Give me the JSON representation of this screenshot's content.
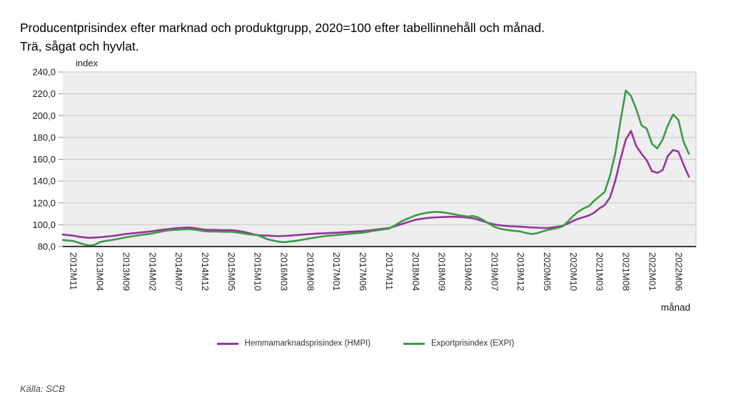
{
  "header": {
    "title_line1": "Producentprisindex efter marknad och produktgrupp, 2020=100 efter tabellinnehåll och månad.",
    "title_line2": "Trä, sågat och hyvlat."
  },
  "source": "Källa: SCB",
  "chart_data": {
    "type": "line",
    "title": "Producentprisindex efter marknad och produktgrupp, 2020=100 efter tabellinnehåll och månad. Trä, sågat och hyvlat.",
    "ylabel": "index",
    "xlabel": "månad",
    "ylim": [
      80,
      240
    ],
    "ytick_step": 20,
    "ytick_labels": [
      "240,0",
      "220,0",
      "200,0",
      "180,0",
      "160,0",
      "140,0",
      "120,0",
      "100,0",
      "80,0"
    ],
    "grid": true,
    "plot_bg": "#eeeeee",
    "grid_color": "#c6c6c6",
    "axis_color": "#3a3a3a",
    "legend_position": "bottom",
    "x": [
      "2012M09",
      "2012M10",
      "2012M11",
      "2012M12",
      "2013M01",
      "2013M02",
      "2013M03",
      "2013M04",
      "2013M05",
      "2013M06",
      "2013M07",
      "2013M08",
      "2013M09",
      "2013M10",
      "2013M11",
      "2013M12",
      "2014M01",
      "2014M02",
      "2014M03",
      "2014M04",
      "2014M05",
      "2014M06",
      "2014M07",
      "2014M08",
      "2014M09",
      "2014M10",
      "2014M11",
      "2014M12",
      "2015M01",
      "2015M02",
      "2015M03",
      "2015M04",
      "2015M05",
      "2015M06",
      "2015M07",
      "2015M08",
      "2015M09",
      "2015M10",
      "2015M11",
      "2015M12",
      "2016M01",
      "2016M02",
      "2016M03",
      "2016M04",
      "2016M05",
      "2016M06",
      "2016M07",
      "2016M08",
      "2016M09",
      "2016M10",
      "2016M11",
      "2016M12",
      "2017M01",
      "2017M02",
      "2017M03",
      "2017M04",
      "2017M05",
      "2017M06",
      "2017M07",
      "2017M08",
      "2017M09",
      "2017M10",
      "2017M11",
      "2017M12",
      "2018M01",
      "2018M02",
      "2018M03",
      "2018M04",
      "2018M05",
      "2018M06",
      "2018M07",
      "2018M08",
      "2018M09",
      "2018M10",
      "2018M11",
      "2018M12",
      "2019M01",
      "2019M02",
      "2019M03",
      "2019M04",
      "2019M05",
      "2019M06",
      "2019M07",
      "2019M08",
      "2019M09",
      "2019M10",
      "2019M11",
      "2019M12",
      "2020M01",
      "2020M02",
      "2020M03",
      "2020M04",
      "2020M05",
      "2020M06",
      "2020M07",
      "2020M08",
      "2020M09",
      "2020M10",
      "2020M11",
      "2020M12",
      "2021M01",
      "2021M02",
      "2021M03",
      "2021M04",
      "2021M05",
      "2021M06",
      "2021M07",
      "2021M08",
      "2021M09",
      "2021M10",
      "2021M11",
      "2021M12",
      "2022M01",
      "2022M02",
      "2022M03",
      "2022M04",
      "2022M05",
      "2022M06",
      "2022M07",
      "2022M08"
    ],
    "xtick_labels": [
      "2012M11",
      "2013M04",
      "2013M09",
      "2014M02",
      "2014M07",
      "2014M12",
      "2015M05",
      "2015M10",
      "2016M03",
      "2016M08",
      "2017M01",
      "2017M06",
      "2017M11",
      "2018M04",
      "2018M09",
      "2019M02",
      "2019M07",
      "2019M12",
      "2020M05",
      "2020M10",
      "2021M03",
      "2021M08",
      "2022M01",
      "2022M06"
    ],
    "series": [
      {
        "name": "Hemmamarknadsprisindex (HMPI)",
        "color": "#95349D",
        "values": [
          91.0,
          90.5,
          90.0,
          89.0,
          88.5,
          88.0,
          88.2,
          88.5,
          89.0,
          89.5,
          90.0,
          90.8,
          91.5,
          92.0,
          92.5,
          93.0,
          93.5,
          94.0,
          94.8,
          95.5,
          96.0,
          96.5,
          97.0,
          97.3,
          97.5,
          97.0,
          96.2,
          95.5,
          95.3,
          95.2,
          95.1,
          95.0,
          95.0,
          94.5,
          93.8,
          92.8,
          91.5,
          90.5,
          90.2,
          90.0,
          89.8,
          89.5,
          89.8,
          90.0,
          90.3,
          90.7,
          91.1,
          91.5,
          91.8,
          92.0,
          92.2,
          92.5,
          92.7,
          93.0,
          93.3,
          93.6,
          93.9,
          94.2,
          94.7,
          95.2,
          95.8,
          96.4,
          97.0,
          98.5,
          100.0,
          101.5,
          103.0,
          104.5,
          105.3,
          106.0,
          106.5,
          106.8,
          107.0,
          107.2,
          107.3,
          107.2,
          107.0,
          106.5,
          105.8,
          104.5,
          103.0,
          101.5,
          100.3,
          99.5,
          99.0,
          98.6,
          98.4,
          98.2,
          97.8,
          97.5,
          97.3,
          97.1,
          97.0,
          97.5,
          98.2,
          99.0,
          101.0,
          103.5,
          105.5,
          107.0,
          108.5,
          111.0,
          115.0,
          118.0,
          125.0,
          140.0,
          160.0,
          178.0,
          186.0,
          172.0,
          165.0,
          159.0,
          149.0,
          147.5,
          150.0,
          163.0,
          168.5,
          167.0,
          155.0,
          144.0
        ]
      },
      {
        "name": "Exportprisindex (EXPI)",
        "color": "#3D9946",
        "values": [
          86.0,
          85.5,
          85.0,
          83.5,
          82.0,
          81.0,
          81.5,
          84.0,
          85.0,
          85.8,
          86.5,
          87.5,
          88.5,
          89.3,
          90.0,
          90.7,
          91.3,
          92.0,
          93.0,
          94.0,
          94.8,
          95.2,
          95.5,
          95.8,
          96.0,
          95.5,
          94.8,
          94.0,
          93.8,
          93.7,
          93.6,
          93.5,
          93.5,
          93.0,
          92.3,
          91.5,
          91.0,
          90.5,
          88.5,
          86.5,
          85.5,
          84.5,
          84.0,
          84.5,
          85.0,
          85.8,
          86.6,
          87.5,
          88.2,
          89.0,
          89.7,
          90.1,
          90.5,
          91.0,
          91.5,
          91.9,
          92.3,
          92.7,
          93.5,
          94.4,
          95.1,
          95.8,
          96.4,
          99.0,
          102.0,
          104.5,
          106.5,
          108.5,
          109.8,
          110.8,
          111.5,
          111.8,
          111.5,
          110.8,
          110.0,
          109.0,
          108.2,
          107.5,
          108.0,
          106.5,
          104.0,
          101.0,
          98.2,
          96.5,
          95.5,
          94.8,
          94.3,
          93.8,
          92.5,
          91.5,
          92.0,
          93.5,
          95.0,
          96.0,
          97.0,
          98.5,
          103.0,
          108.0,
          112.0,
          115.0,
          117.0,
          122.0,
          126.0,
          130.0,
          145.0,
          165.0,
          195.0,
          223.0,
          218.0,
          206.0,
          191.0,
          188.0,
          174.0,
          170.0,
          178.0,
          191.0,
          201.0,
          196.0,
          176.0,
          165.0
        ]
      }
    ]
  }
}
